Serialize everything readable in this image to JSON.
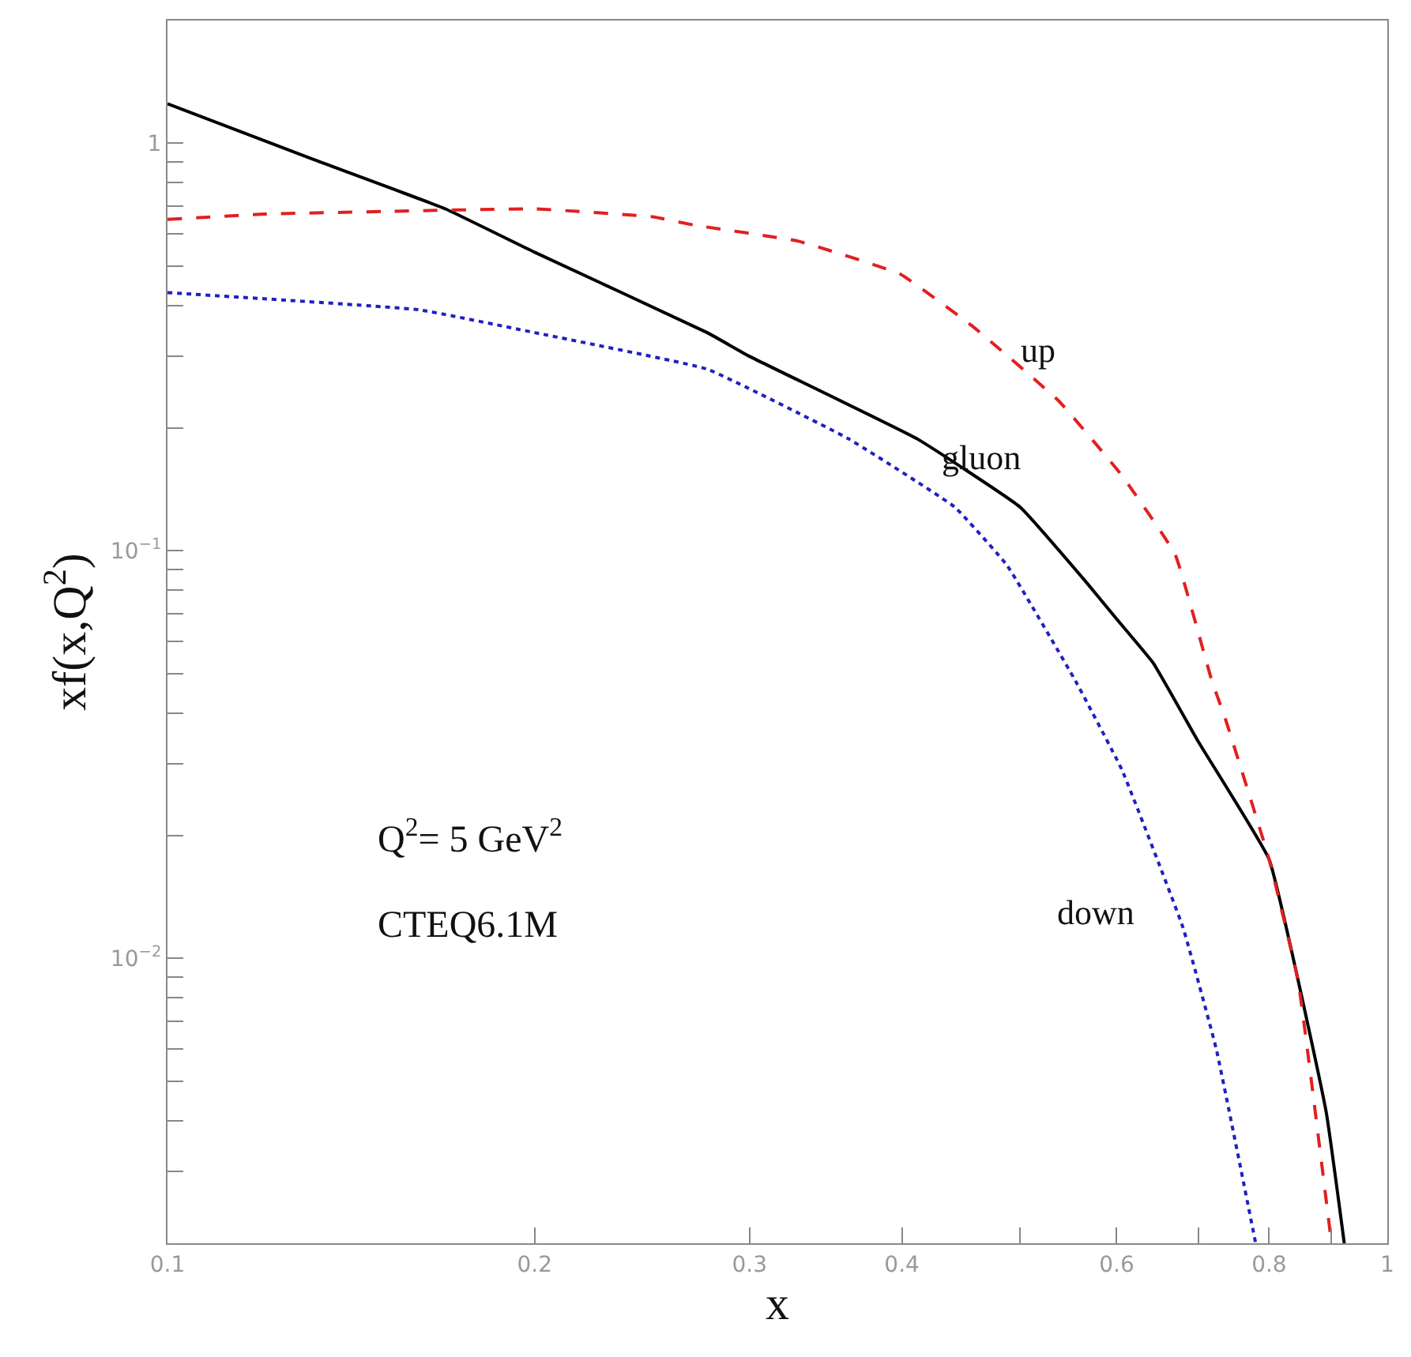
{
  "chart_data": {
    "type": "line",
    "xlabel": "x",
    "ylabel": "xf(x,Q$^{2}$)",
    "log": "xy",
    "legend": false,
    "marker": "none",
    "xlim": [
      0.1,
      1
    ],
    "ylim": [
      0.002,
      2
    ],
    "xticks": [
      0.1,
      0.2,
      0.3,
      0.4,
      {
        "value": 0.5,
        "label": null
      },
      0.6,
      {
        "value": 0.7,
        "label": null
      },
      0.8,
      {
        "value": 0.9,
        "label": null
      },
      1
    ],
    "yticks": [
      {
        "value": 0.002,
        "label": null
      },
      {
        "value": 0.003,
        "label": null
      },
      {
        "value": 0.004,
        "label": null
      },
      {
        "value": 0.005,
        "label": null
      },
      {
        "value": 0.006,
        "label": null
      },
      {
        "value": 0.007,
        "label": null
      },
      {
        "value": 0.008,
        "label": null
      },
      {
        "value": 0.009,
        "label": null
      },
      {
        "value": 0.01,
        "label": "10$^{−2}$"
      },
      {
        "value": 0.02,
        "label": null
      },
      {
        "value": 0.03,
        "label": null
      },
      {
        "value": 0.04,
        "label": null
      },
      {
        "value": 0.05,
        "label": null
      },
      {
        "value": 0.06,
        "label": null
      },
      {
        "value": 0.07,
        "label": null
      },
      {
        "value": 0.08,
        "label": null
      },
      {
        "value": 0.09,
        "label": null
      },
      {
        "value": 0.1,
        "label": "10$^{−1}$"
      },
      {
        "value": 0.2,
        "label": null
      },
      {
        "value": 0.3,
        "label": null
      },
      {
        "value": 0.4,
        "label": null
      },
      {
        "value": 0.5,
        "label": null
      },
      {
        "value": 0.6,
        "label": null
      },
      {
        "value": 0.7,
        "label": null
      },
      {
        "value": 0.8,
        "label": null
      },
      {
        "value": 0.9,
        "label": null
      },
      1,
      {
        "value": 2,
        "label": null
      }
    ],
    "series": [
      {
        "name": "gluon",
        "color": "#000000",
        "line_style": "solid",
        "x": [
          0.1,
          0.132,
          0.169,
          0.2,
          0.277,
          0.3,
          0.412,
          0.5,
          0.566,
          0.6,
          0.643,
          0.7,
          0.8,
          0.891,
          0.922
        ],
        "values": [
          1.25,
          0.91,
          0.69,
          0.54,
          0.343,
          0.3,
          0.188,
          0.128,
          0.084,
          0.068,
          0.053,
          0.034,
          0.0175,
          0.0042,
          0.002
        ]
      },
      {
        "name": "up",
        "color": "#e02020",
        "line_style": "dashed",
        "x": [
          0.1,
          0.12,
          0.15,
          0.2,
          0.25,
          0.27,
          0.329,
          0.399,
          0.459,
          0.538,
          0.606,
          0.67,
          0.718,
          0.736,
          0.8,
          0.845,
          0.9
        ],
        "values": [
          0.65,
          0.67,
          0.68,
          0.69,
          0.66,
          0.63,
          0.575,
          0.477,
          0.352,
          0.233,
          0.153,
          0.098,
          0.048,
          0.039,
          0.0175,
          0.0088,
          0.002
        ]
      },
      {
        "name": "down",
        "color": "#2020c0",
        "line_style": "dotted",
        "x": [
          0.1,
          0.161,
          0.2,
          0.277,
          0.362,
          0.442,
          0.488,
          0.555,
          0.606,
          0.68,
          0.724,
          0.78
        ],
        "values": [
          0.43,
          0.39,
          0.343,
          0.279,
          0.188,
          0.128,
          0.092,
          0.048,
          0.029,
          0.0119,
          0.006,
          0.002
        ]
      }
    ],
    "annotations": [
      "Q$^{2}$= 5 GeV$^{2}$",
      "CTEQ6.1M"
    ]
  }
}
